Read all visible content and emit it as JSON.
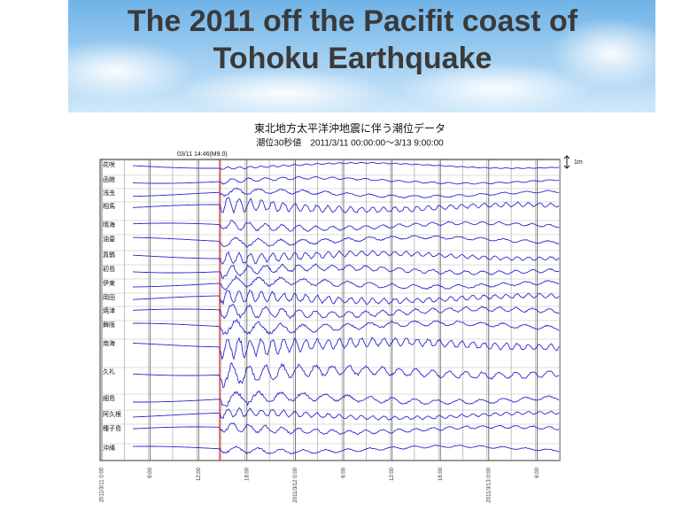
{
  "header": {
    "title_lines": [
      "The 2011 off the Pacifit coast of",
      "Tohoku Earthquake"
    ]
  },
  "figure": {
    "title": "東北地方太平洋沖地震に伴う潮位データ",
    "subtitle": "潮位30秒値　2011/3/11 00:00:00～3/13 9:00:00",
    "event": "03/11 14:46(M9.0)",
    "scale": "1m",
    "stations": [
      "花咲",
      "函館",
      "浅虫",
      "相馬",
      "晴海",
      "油壷",
      "真鶴",
      "初島",
      "伊東",
      "岡田",
      "焼津",
      "舞阪",
      "南海",
      "久礼",
      "細島",
      "阿久根",
      "種子島",
      "沖縄"
    ],
    "time_labels": [
      "2011/3/11 0:00",
      "6:00",
      "12:00",
      "18:00",
      "2011/3/12 0:00",
      "6:00",
      "12:00",
      "18:00",
      "2011/3/13 0:00",
      "6:00"
    ]
  }
}
